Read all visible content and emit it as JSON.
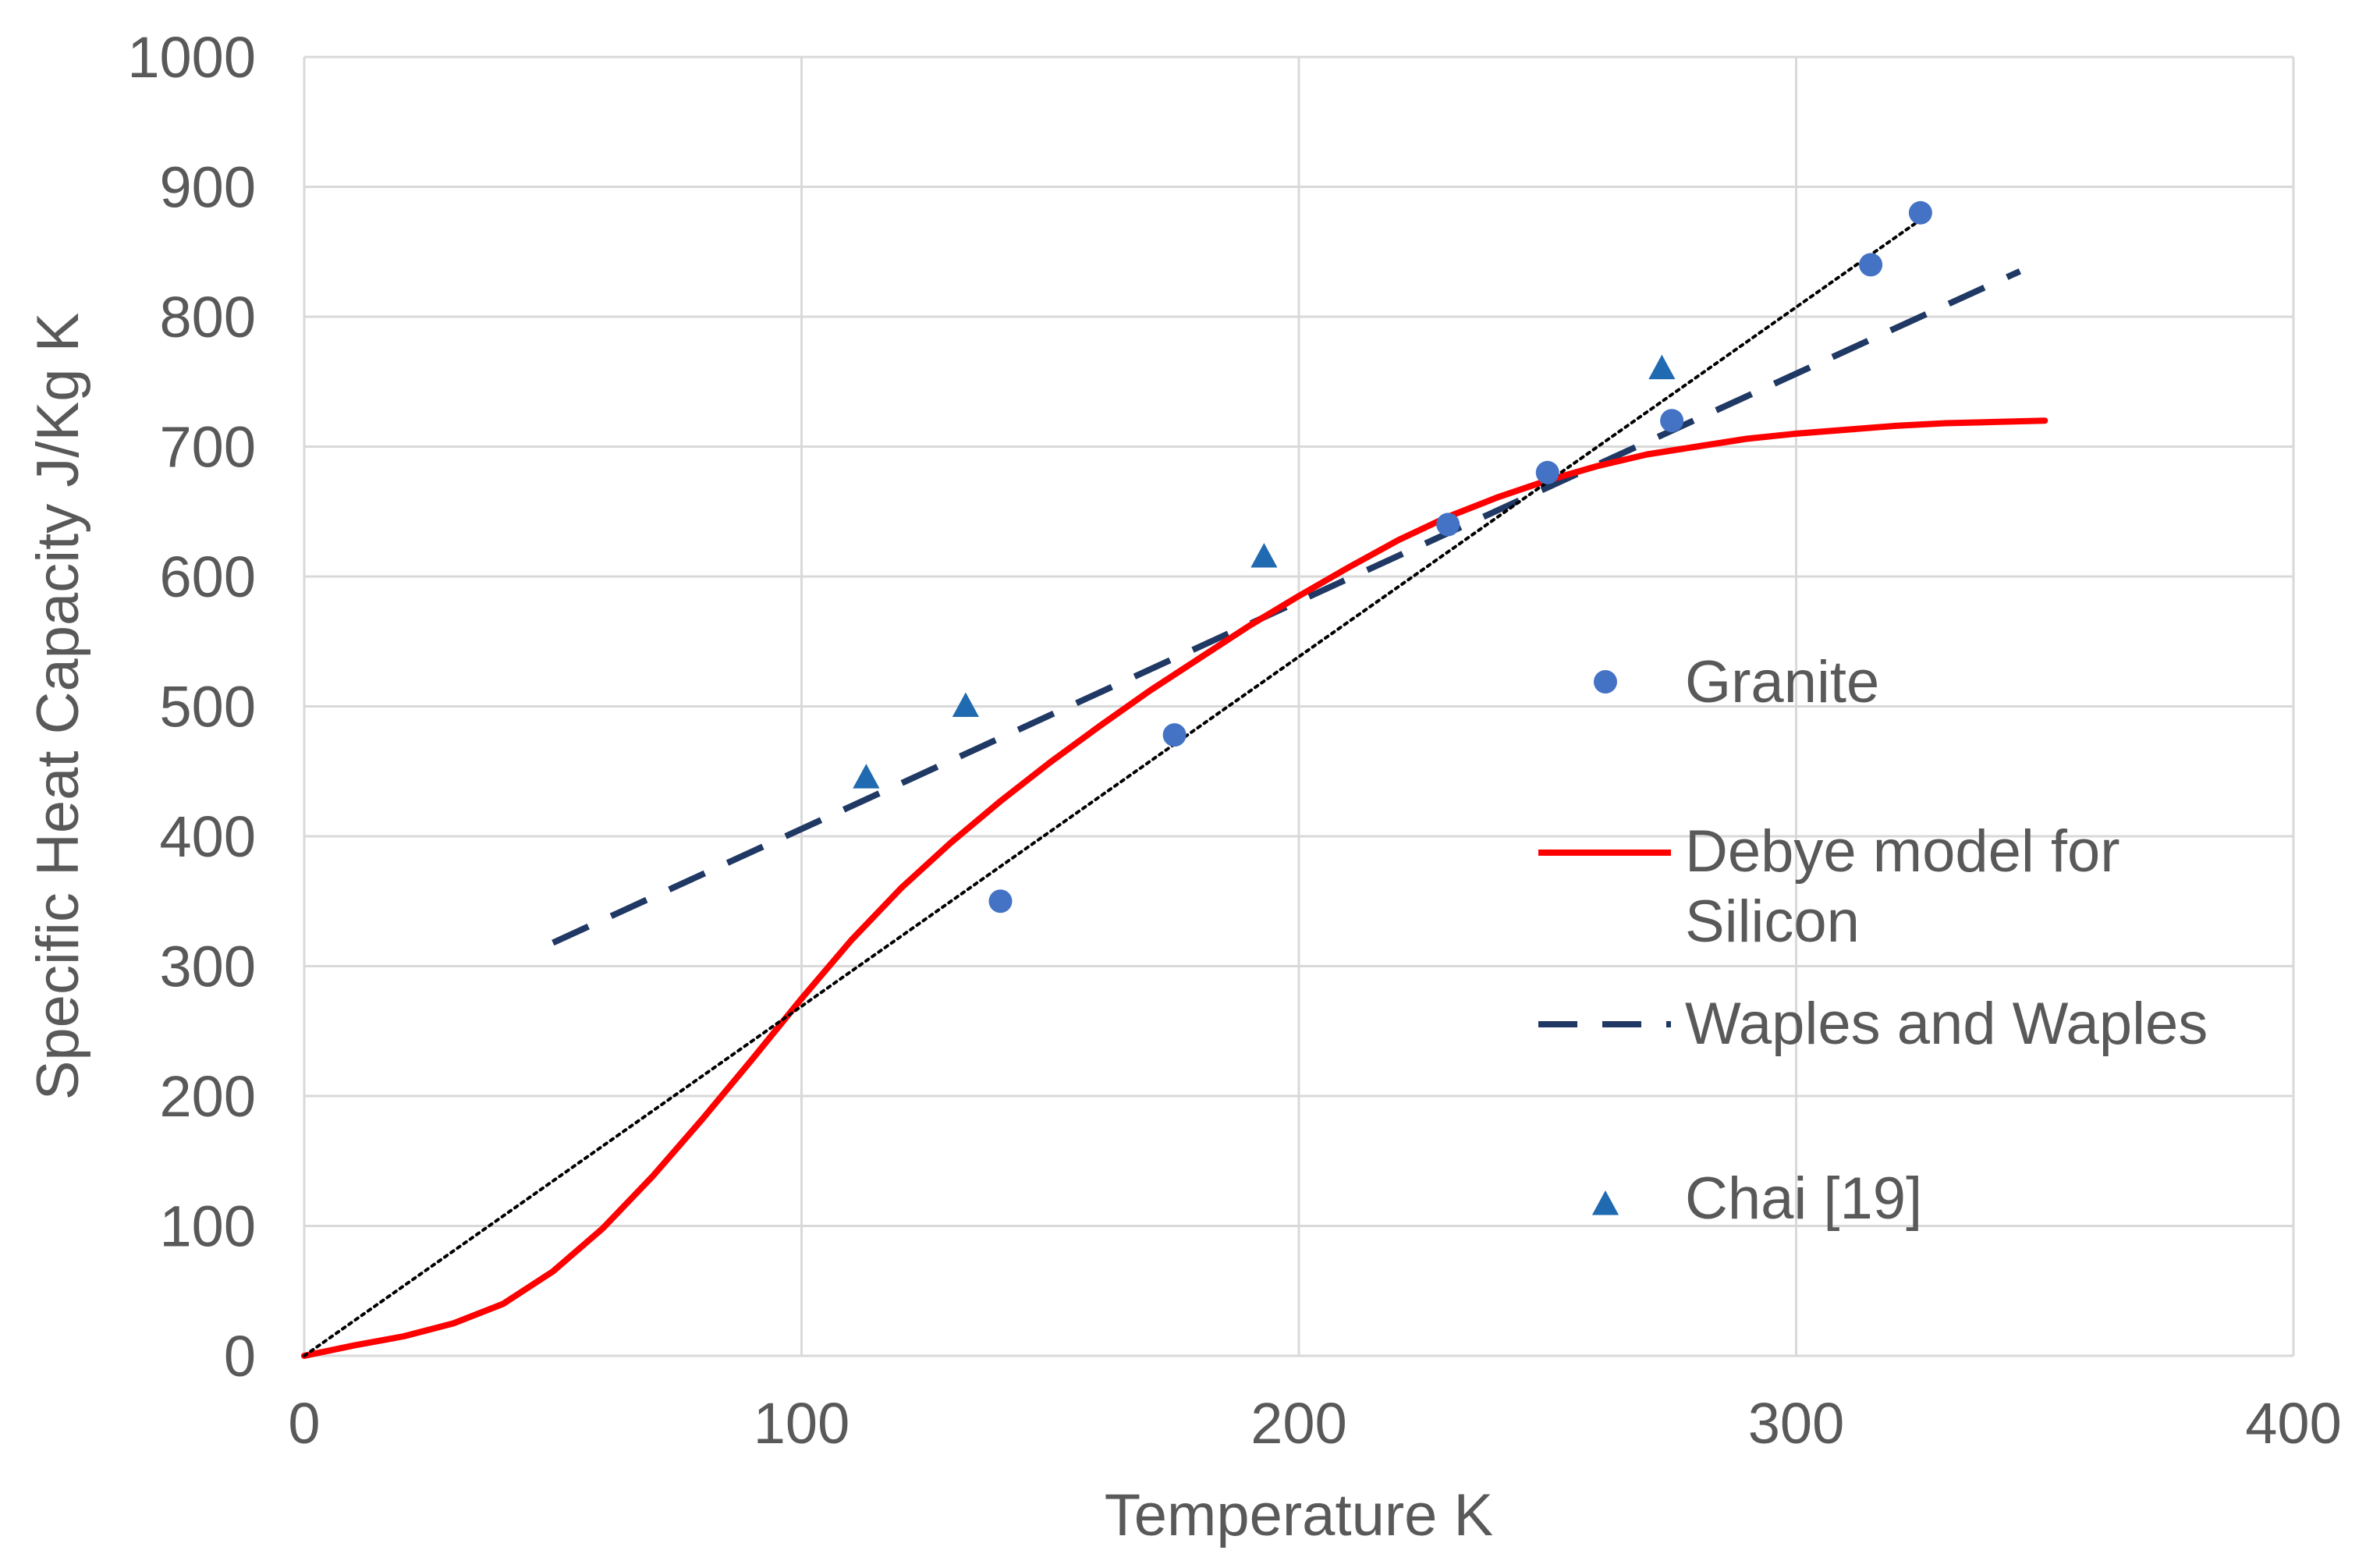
{
  "chart_data": {
    "type": "scatter",
    "title": "",
    "xlabel": "Temperature  K",
    "ylabel": "Specific Heat Capacity J/Kg K",
    "xlim": [
      0,
      400
    ],
    "ylim": [
      0,
      1000
    ],
    "xticks": [
      0,
      100,
      200,
      300,
      400
    ],
    "yticks": [
      0,
      100,
      200,
      300,
      400,
      500,
      600,
      700,
      800,
      900,
      1000
    ],
    "grid": true,
    "legend_position": "right",
    "series": [
      {
        "name": "Granite",
        "kind": "scatter",
        "marker": "circle",
        "color": "#4472C4",
        "x": [
          140,
          175,
          230,
          250,
          275,
          315,
          325
        ],
        "y": [
          350,
          478,
          640,
          680,
          720,
          840,
          880
        ]
      },
      {
        "name": "Debye model for Silicon",
        "kind": "line",
        "style": "solid",
        "color": "#FF0000",
        "x": [
          0,
          10,
          20,
          30,
          40,
          50,
          60,
          70,
          80,
          90,
          100,
          110,
          120,
          130,
          140,
          150,
          160,
          170,
          180,
          190,
          200,
          210,
          220,
          230,
          240,
          250,
          260,
          270,
          280,
          290,
          300,
          310,
          320,
          330,
          340,
          350
        ],
        "y": [
          0,
          8,
          15,
          25,
          40,
          65,
          98,
          138,
          182,
          228,
          275,
          320,
          360,
          395,
          427,
          457,
          485,
          512,
          537,
          562,
          585,
          607,
          628,
          646,
          661,
          674,
          685,
          694,
          700,
          706,
          710,
          713,
          716,
          718,
          719,
          720
        ]
      },
      {
        "name": "Waples and Waples",
        "kind": "line",
        "style": "dashed",
        "color": "#1F3864",
        "x": [
          50,
          345
        ],
        "y": [
          318,
          835
        ]
      },
      {
        "name": "Chai [19]",
        "kind": "scatter",
        "marker": "triangle",
        "color": "#1F6AB0",
        "x": [
          113,
          133,
          193,
          273
        ],
        "y": [
          445,
          500,
          615,
          760
        ]
      },
      {
        "name": "",
        "kind": "line",
        "style": "dotted",
        "color": "#000000",
        "x": [
          0,
          327
        ],
        "y": [
          0,
          880
        ]
      }
    ]
  }
}
